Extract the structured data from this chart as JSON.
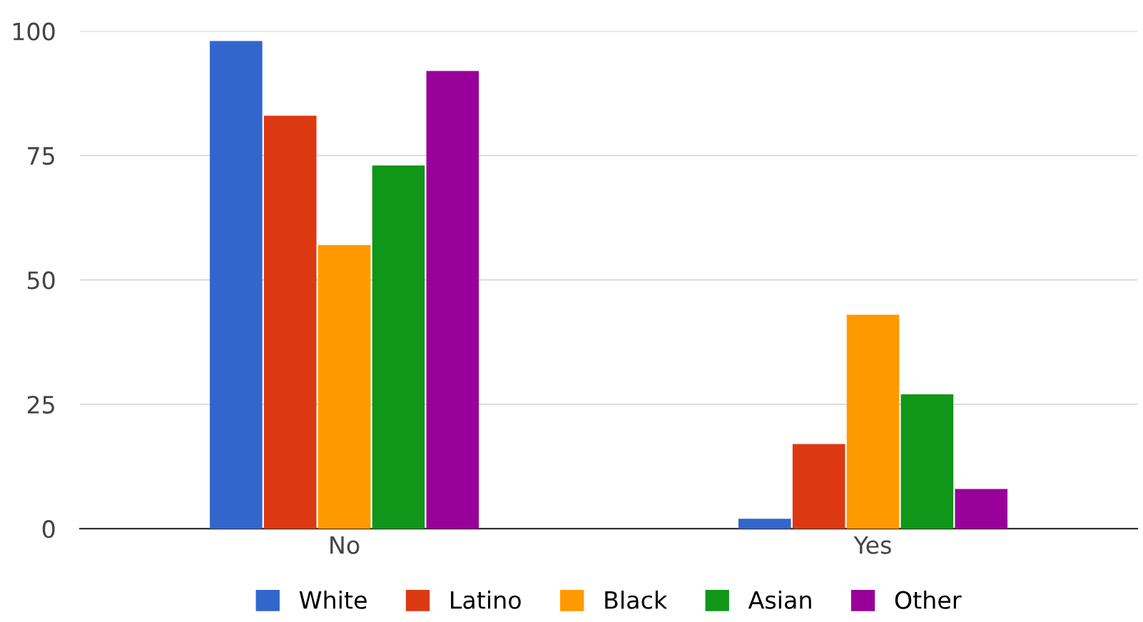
{
  "chart_data": {
    "type": "bar",
    "categories": [
      "No",
      "Yes"
    ],
    "series": [
      {
        "name": "White",
        "color": "#3366cc",
        "values": [
          98,
          2
        ]
      },
      {
        "name": "Latino",
        "color": "#dc3912",
        "values": [
          83,
          17
        ]
      },
      {
        "name": "Black",
        "color": "#ff9900",
        "values": [
          57,
          43
        ]
      },
      {
        "name": "Asian",
        "color": "#109618",
        "values": [
          73,
          27
        ]
      },
      {
        "name": "Other",
        "color": "#990099",
        "values": [
          92,
          8
        ]
      }
    ],
    "ylim": [
      0,
      100
    ],
    "yticks": [
      0,
      25,
      50,
      75,
      100
    ],
    "grid": "y",
    "legend": "bottom"
  }
}
